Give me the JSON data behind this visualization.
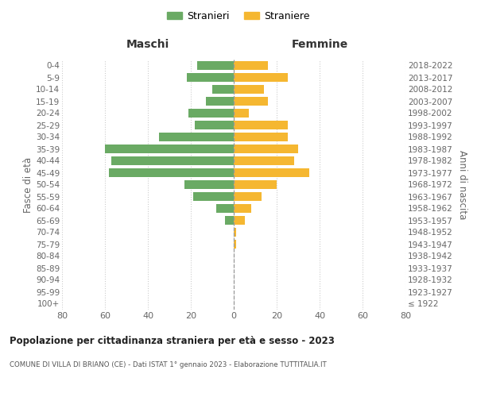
{
  "age_groups": [
    "100+",
    "95-99",
    "90-94",
    "85-89",
    "80-84",
    "75-79",
    "70-74",
    "65-69",
    "60-64",
    "55-59",
    "50-54",
    "45-49",
    "40-44",
    "35-39",
    "30-34",
    "25-29",
    "20-24",
    "15-19",
    "10-14",
    "5-9",
    "0-4"
  ],
  "birth_years": [
    "≤ 1922",
    "1923-1927",
    "1928-1932",
    "1933-1937",
    "1938-1942",
    "1943-1947",
    "1948-1952",
    "1953-1957",
    "1958-1962",
    "1963-1967",
    "1968-1972",
    "1973-1977",
    "1978-1982",
    "1983-1987",
    "1988-1992",
    "1993-1997",
    "1998-2002",
    "2003-2007",
    "2008-2012",
    "2013-2017",
    "2018-2022"
  ],
  "males": [
    0,
    0,
    0,
    0,
    0,
    0,
    0,
    4,
    8,
    19,
    23,
    58,
    57,
    60,
    35,
    18,
    21,
    13,
    10,
    22,
    17
  ],
  "females": [
    0,
    0,
    0,
    0,
    0,
    1,
    1,
    5,
    8,
    13,
    20,
    35,
    28,
    30,
    25,
    25,
    7,
    16,
    14,
    25,
    16
  ],
  "male_color": "#6aaa64",
  "female_color": "#f5b731",
  "background_color": "#ffffff",
  "grid_color": "#cccccc",
  "title": "Popolazione per cittadinanza straniera per età e sesso - 2023",
  "subtitle": "COMUNE DI VILLA DI BRIANO (CE) - Dati ISTAT 1° gennaio 2023 - Elaborazione TUTTITALIA.IT",
  "xlabel_left": "Maschi",
  "xlabel_right": "Femmine",
  "ylabel_left": "Fasce di età",
  "ylabel_right": "Anni di nascita",
  "xlim": 80,
  "legend_stranieri": "Stranieri",
  "legend_straniere": "Straniere"
}
